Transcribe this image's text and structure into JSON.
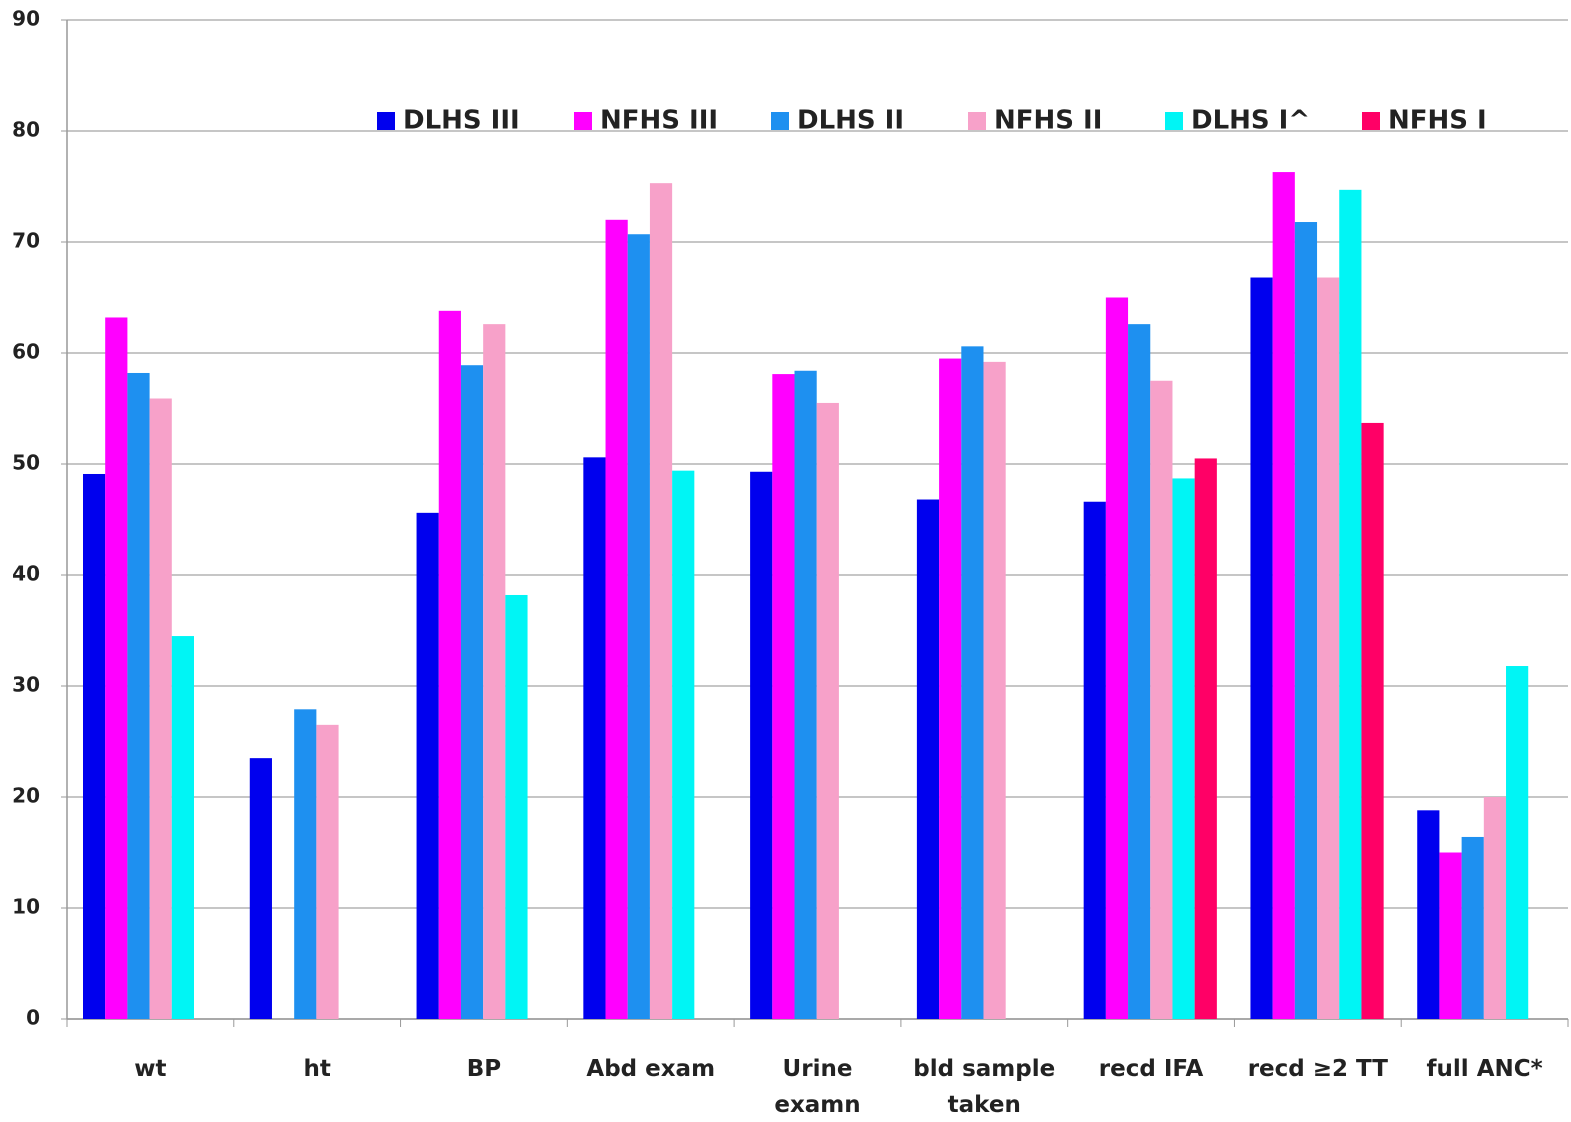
{
  "chart_data": {
    "type": "bar",
    "categories": [
      "wt",
      "ht",
      "BP",
      "Abd exam",
      "Urine examn",
      "bld sample taken",
      "recd IFA",
      "recd ≥2 TT",
      "full ANC*"
    ],
    "series": [
      {
        "name": "DLHS III",
        "color": "#0000ee",
        "values": [
          49.1,
          23.5,
          45.6,
          50.6,
          49.3,
          46.8,
          46.6,
          66.8,
          18.8
        ]
      },
      {
        "name": "NFHS III",
        "color": "#ff00ff",
        "values": [
          63.2,
          null,
          63.8,
          72,
          58.1,
          59.5,
          65,
          76.3,
          15
        ]
      },
      {
        "name": "DLHS II",
        "color": "#1e90f0",
        "values": [
          58.2,
          27.9,
          58.9,
          70.7,
          58.4,
          60.6,
          62.6,
          71.8,
          16.4
        ]
      },
      {
        "name": "NFHS II",
        "color": "#f7a1c9",
        "values": [
          55.9,
          26.5,
          62.6,
          75.3,
          55.5,
          59.2,
          57.5,
          66.8,
          20
        ]
      },
      {
        "name": "DLHS I^",
        "color": "#00f5f5",
        "values": [
          34.5,
          null,
          38.2,
          49.4,
          null,
          null,
          48.7,
          74.7,
          31.8
        ]
      },
      {
        "name": "NFHS I",
        "color": "#ff0066",
        "values": [
          null,
          null,
          null,
          null,
          null,
          null,
          50.5,
          53.7,
          null
        ]
      }
    ],
    "ylim": [
      0,
      90
    ],
    "yticks": [
      0,
      10,
      20,
      30,
      40,
      50,
      60,
      70,
      80,
      90
    ],
    "grid": true
  }
}
